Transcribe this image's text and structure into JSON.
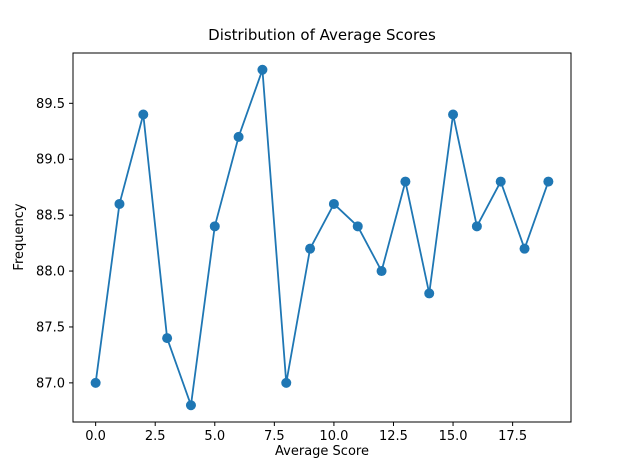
{
  "chart_data": {
    "type": "line",
    "title": "Distribution of Average Scores",
    "xlabel": "Average Score",
    "ylabel": "Frequency",
    "x": [
      0,
      1,
      2,
      3,
      4,
      5,
      6,
      7,
      8,
      9,
      10,
      11,
      12,
      13,
      14,
      15,
      16,
      17,
      18,
      19
    ],
    "values": [
      87.0,
      88.6,
      89.4,
      87.4,
      86.8,
      88.4,
      89.2,
      89.8,
      87.0,
      88.2,
      88.6,
      88.4,
      88.0,
      88.8,
      87.8,
      89.4,
      88.4,
      88.8,
      88.2,
      88.8
    ],
    "xlim": [
      -0.95,
      19.95
    ],
    "ylim": [
      86.65,
      89.95
    ],
    "xticks": [
      0.0,
      2.5,
      5.0,
      7.5,
      10.0,
      12.5,
      15.0,
      17.5
    ],
    "xtick_labels": [
      "0.0",
      "2.5",
      "5.0",
      "7.5",
      "10.0",
      "12.5",
      "15.0",
      "17.5"
    ],
    "yticks": [
      87.0,
      87.5,
      88.0,
      88.5,
      89.0,
      89.5
    ],
    "ytick_labels": [
      "87.0",
      "87.5",
      "88.0",
      "88.5",
      "89.0",
      "89.5"
    ],
    "line_color": "#1f77b4",
    "marker": "circle",
    "marker_color": "#1f77b4",
    "spine_color": "#000000",
    "tick_label_color": "#000000",
    "grid": false,
    "legend": null
  }
}
